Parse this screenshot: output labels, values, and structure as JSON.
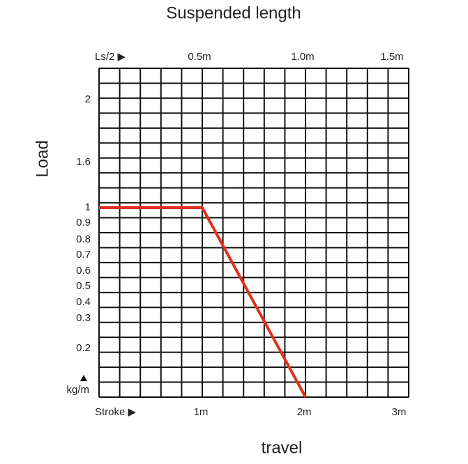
{
  "chart_data": {
    "type": "line",
    "title": "Suspended length",
    "x_label": "travel",
    "y_label": "Load",
    "top_axis_label": "Ls/2 ▶",
    "bottom_axis_label": "Stroke ▶",
    "y_unit_label": "kg/m",
    "x": [
      0,
      1,
      2
    ],
    "series": [
      {
        "name": "Load",
        "color": "#e0301e",
        "values": [
          1,
          1,
          0.1
        ]
      }
    ],
    "xlim": [
      0,
      3
    ],
    "xticks": [
      {
        "value": 1,
        "label": "1m"
      },
      {
        "value": 2,
        "label": "2m"
      },
      {
        "value": 3,
        "label": "3m"
      }
    ],
    "x2lim": [
      0,
      1.5
    ],
    "x2ticks": [
      {
        "value": 0.5,
        "label": "0.5m"
      },
      {
        "value": 1.0,
        "label": "1.0m"
      },
      {
        "value": 1.5,
        "label": "1.5m"
      }
    ],
    "ylim": [
      0.1,
      2.2
    ],
    "yticks": [
      2,
      1.6,
      1,
      0.9,
      0.8,
      0.7,
      0.6,
      0.5,
      0.4,
      0.3,
      0.2
    ],
    "grid": true
  }
}
